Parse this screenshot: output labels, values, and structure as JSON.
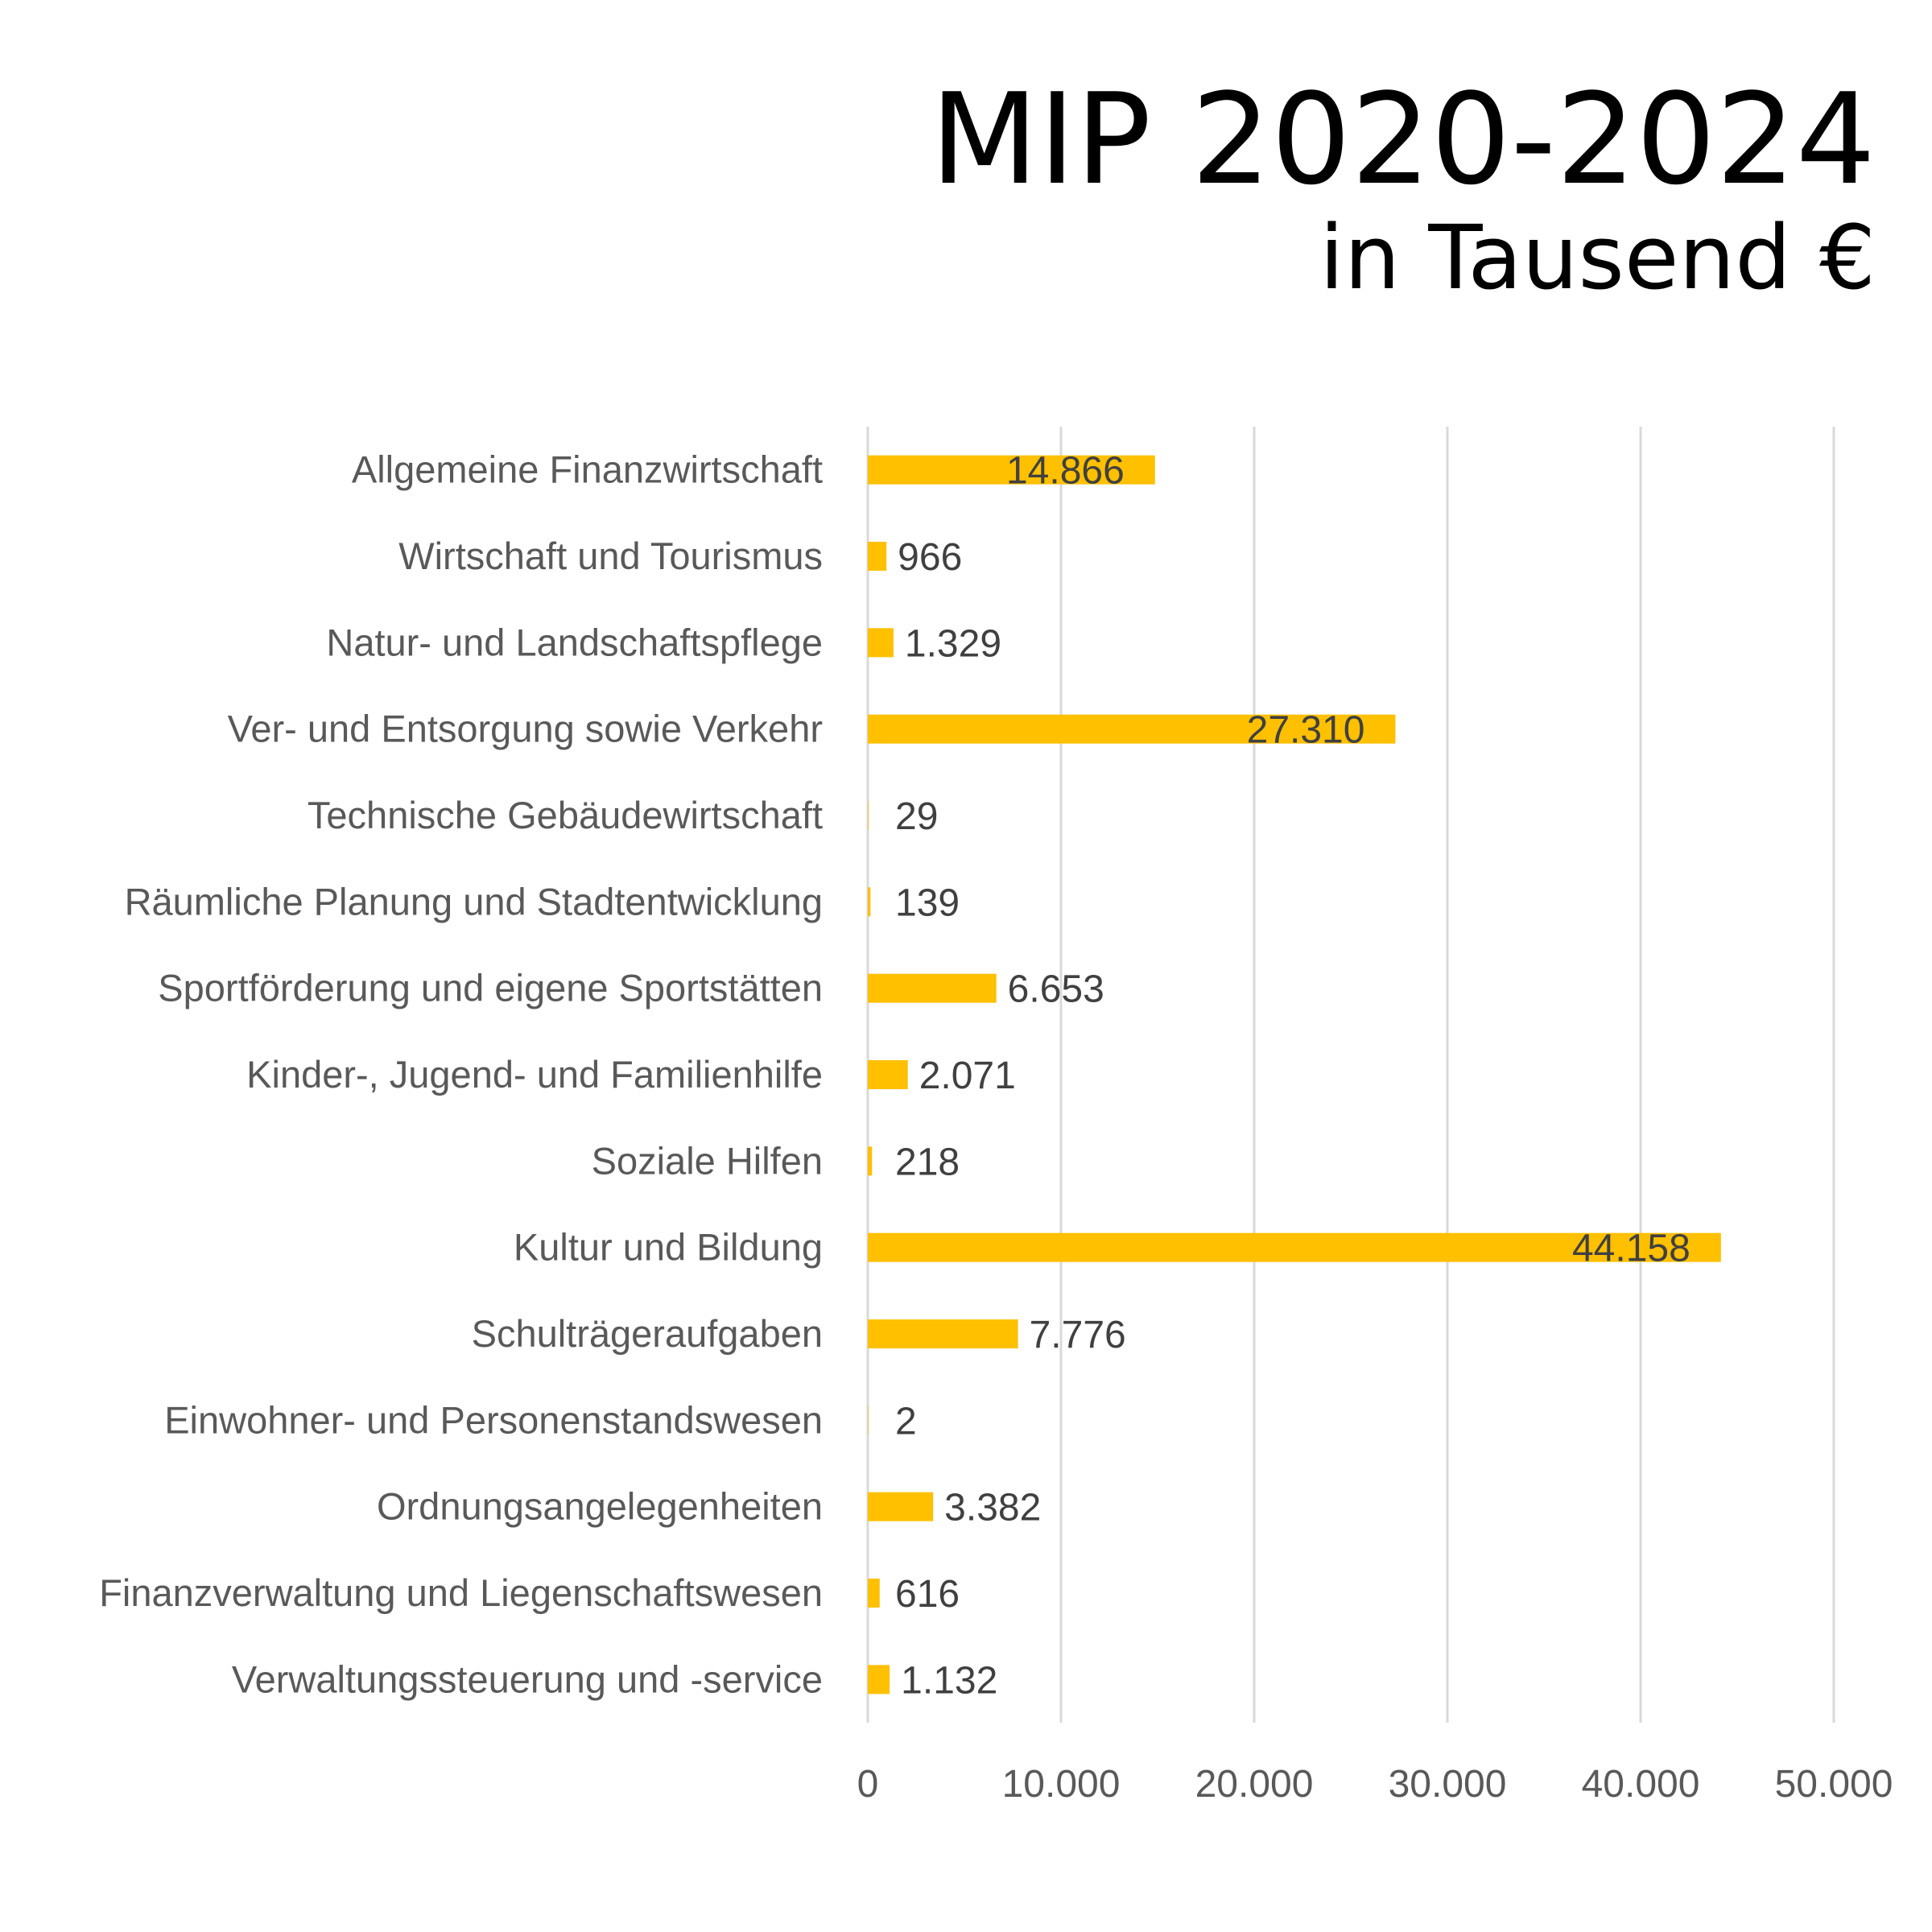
{
  "header": {
    "title": "MIP 2020-2024",
    "subtitle": "in Tausend €"
  },
  "chart_data": {
    "type": "bar",
    "orientation": "horizontal",
    "title": "MIP 2020-2024",
    "subtitle": "in Tausend €",
    "xlabel": "",
    "ylabel": "",
    "xlim": [
      0,
      50000
    ],
    "ticks": [
      0,
      10000,
      20000,
      30000,
      40000,
      50000
    ],
    "tick_labels": [
      "0",
      "10.000",
      "20.000",
      "30.000",
      "40.000",
      "50.000"
    ],
    "grid": "vertical",
    "legend": "none",
    "bar_color": "#FFC000",
    "categories": [
      "Allgemeine Finanzwirtschaft",
      "Wirtschaft und Tourismus",
      "Natur- und Landschaftspflege",
      "Ver- und Entsorgung sowie Verkehr",
      "Technische Gebäudewirtschaft",
      "Räumliche Planung und Stadtentwicklung",
      "Sportförderung und eigene Sportstätten",
      "Kinder-, Jugend- und Familienhilfe",
      "Soziale Hilfen",
      "Kultur und Bildung",
      "Schulträgeraufgaben",
      "Einwohner- und Personenstandswesen",
      "Ordnungsangelegenheiten",
      "Finanzverwaltung und Liegenschaftswesen",
      "Verwaltungssteuerung und -service"
    ],
    "values": [
      14866,
      966,
      1329,
      27310,
      29,
      139,
      6653,
      2071,
      218,
      44158,
      7776,
      2,
      3382,
      616,
      1132
    ],
    "data_labels": [
      "14.866",
      "966",
      "1.329",
      "27.310",
      "29",
      "139",
      "6.653",
      "2.071",
      "218",
      "44.158",
      "7.776",
      "2",
      "3.382",
      "616",
      "1.132"
    ]
  }
}
